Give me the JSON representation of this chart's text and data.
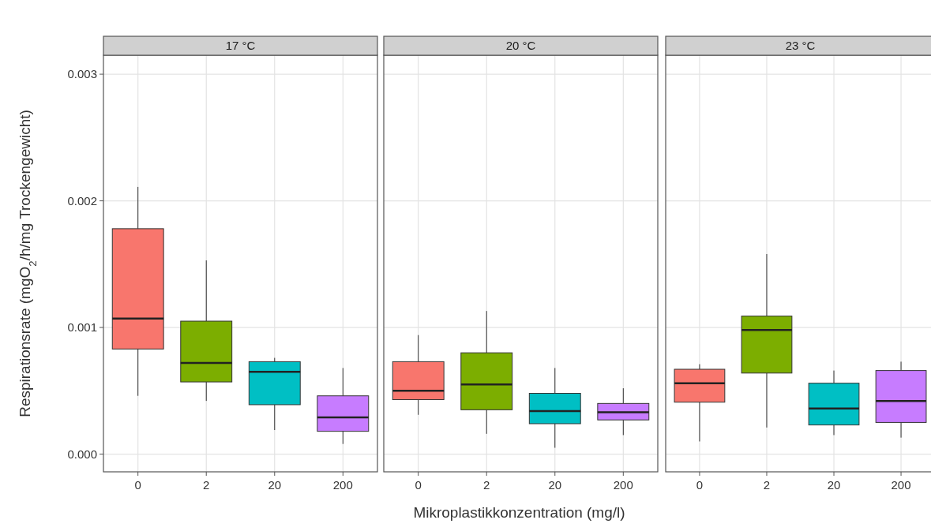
{
  "chart_data": [
    {
      "type": "box",
      "title": "17 °C",
      "ylabel": "Respirationsrate (mgO$_{2}$/h/mg Trockengewicht)",
      "categories": [
        "0",
        "2",
        "20",
        "200"
      ],
      "colors": [
        "#f8766d",
        "#7cae00",
        "#00bfc4",
        "#c77cff"
      ],
      "ylim": [
        -0.00014,
        0.00315
      ],
      "yticks": [
        {
          "value": 0,
          "label": "0.000"
        },
        {
          "value": 0.001,
          "label": "0.001"
        },
        {
          "value": 0.002,
          "label": "0.002"
        },
        {
          "value": 0.003,
          "label": "0.003"
        }
      ],
      "grid": true,
      "boxes": [
        {
          "low": 0.00046,
          "q1": 0.00083,
          "median": 0.00107,
          "q3": 0.00178,
          "high": 0.00211
        },
        {
          "low": 0.00042,
          "q1": 0.00057,
          "median": 0.00072,
          "q3": 0.00105,
          "high": 0.00153
        },
        {
          "low": 0.00019,
          "q1": 0.00039,
          "median": 0.00065,
          "q3": 0.00073,
          "high": 0.00076
        },
        {
          "low": 8e-05,
          "q1": 0.00018,
          "median": 0.00029,
          "q3": 0.00046,
          "high": 0.00068
        }
      ]
    },
    {
      "type": "box",
      "title": "20 °C",
      "xlabel": "Mikroplastikkonzentration (mg/l)",
      "categories": [
        "0",
        "2",
        "20",
        "200"
      ],
      "colors": [
        "#f8766d",
        "#7cae00",
        "#00bfc4",
        "#c77cff"
      ],
      "ylim": [
        -0.00014,
        0.00315
      ],
      "yticks": [
        {
          "value": 0,
          "label": null
        },
        {
          "value": 0.001,
          "label": null
        },
        {
          "value": 0.002,
          "label": null
        },
        {
          "value": 0.003,
          "label": null
        }
      ],
      "grid": true,
      "tick_labels": "x",
      "boxes": [
        {
          "low": 0.00031,
          "q1": 0.00043,
          "median": 0.0005,
          "q3": 0.00073,
          "high": 0.00094
        },
        {
          "low": 0.00016,
          "q1": 0.00035,
          "median": 0.00055,
          "q3": 0.0008,
          "high": 0.00113
        },
        {
          "low": 5e-05,
          "q1": 0.00024,
          "median": 0.00034,
          "q3": 0.00048,
          "high": 0.00068
        },
        {
          "low": 0.00015,
          "q1": 0.00027,
          "median": 0.00033,
          "q3": 0.0004,
          "high": 0.00052
        }
      ]
    },
    {
      "type": "box",
      "title": "23 °C",
      "categories": [
        "0",
        "2",
        "20",
        "200"
      ],
      "colors": [
        "#f8766d",
        "#7cae00",
        "#00bfc4",
        "#c77cff"
      ],
      "ylim": [
        -0.00014,
        0.00315
      ],
      "yticks": [
        {
          "value": 0,
          "label": null
        },
        {
          "value": 0.001,
          "label": null
        },
        {
          "value": 0.002,
          "label": null
        },
        {
          "value": 0.003,
          "label": null
        }
      ],
      "grid": true,
      "tick_labels": "x",
      "boxes": [
        {
          "low": 0.0001,
          "q1": 0.00041,
          "median": 0.00056,
          "q3": 0.00067,
          "high": 0.00071
        },
        {
          "low": 0.00021,
          "q1": 0.00064,
          "median": 0.00098,
          "q3": 0.00109,
          "high": 0.00158
        },
        {
          "low": 0.00015,
          "q1": 0.00023,
          "median": 0.00036,
          "q3": 0.00056,
          "high": 0.00066
        },
        {
          "low": 0.00013,
          "q1": 0.00025,
          "median": 0.00042,
          "q3": 0.00066,
          "high": 0.00073
        }
      ]
    }
  ]
}
